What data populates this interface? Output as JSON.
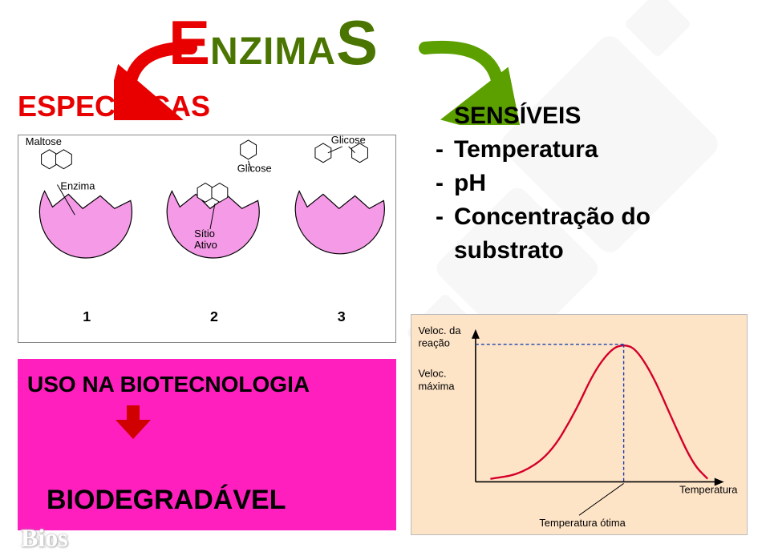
{
  "title": {
    "letter_left": "E",
    "mid": "NZIMA",
    "letter_right": "S",
    "color_left": "#e80000",
    "color_mid": "#4a7500",
    "color_right": "#4a7500",
    "fontsize_big": 78,
    "fontsize_mid": 48
  },
  "arrows": {
    "red_curve": {
      "color": "#e80000",
      "stroke_width": 16
    },
    "green_curve": {
      "color": "#5ca000",
      "stroke_width": 16
    },
    "down": {
      "color": "#d00000",
      "width": 44,
      "height": 42
    }
  },
  "especificas": {
    "text": "ESPECÍFICAS",
    "color": "#e80000",
    "fontsize": 36
  },
  "sensiveis": {
    "heading": "SENSÍVEIS",
    "items": [
      "Temperatura",
      "pH",
      "Concentração do substrato"
    ],
    "fontsize": 30,
    "color": "#000000"
  },
  "enzyme_diagram": {
    "border_color": "#888888",
    "enzyme_fill": "#f49ae6",
    "enzyme_stroke": "#000000",
    "substrate_stroke": "#000000",
    "bg": "#ffffff",
    "labels": {
      "maltose": "Maltose",
      "enzima": "Enzima",
      "glicose": "Glicose",
      "sitio": "Sítio",
      "ativo": "Ativo"
    },
    "step_numbers": [
      "1",
      "2",
      "3"
    ],
    "label_fontsize": 13,
    "num_fontsize": 18
  },
  "pink_block": {
    "bg": "#ff1fbf",
    "uso": "USO NA BIOTECNOLOGIA",
    "uso_fontsize": 28,
    "biodeg": "BIODEGRADÁVEL",
    "biodeg_fontsize": 34,
    "text_color": "#000000"
  },
  "chart": {
    "type": "line",
    "bg": "#fee4c7",
    "axis_color": "#000000",
    "curve_color": "#d4002a",
    "curve_width": 2.4,
    "guide_color": "#1a3fb0",
    "guide_dash": "4 3",
    "y_label_top": "Veloc. da",
    "y_label_top2": "reação",
    "y_label_mid": "Veloc.",
    "y_label_mid2": "máxima",
    "x_label": "Temperatura",
    "opt_label": "Temperatura ótima",
    "label_fontsize": 13,
    "curve_points": [
      [
        0.06,
        0.98
      ],
      [
        0.18,
        0.95
      ],
      [
        0.3,
        0.82
      ],
      [
        0.4,
        0.55
      ],
      [
        0.48,
        0.27
      ],
      [
        0.55,
        0.12
      ],
      [
        0.6,
        0.09
      ],
      [
        0.65,
        0.12
      ],
      [
        0.72,
        0.3
      ],
      [
        0.8,
        0.6
      ],
      [
        0.88,
        0.88
      ],
      [
        0.94,
        0.98
      ]
    ],
    "peak_x": 0.6,
    "peak_y": 0.09,
    "xlim": [
      0,
      1
    ],
    "ylim": [
      0,
      1
    ]
  },
  "logo": "Bios",
  "bg_shape": {
    "color": "#d8d8d8"
  }
}
